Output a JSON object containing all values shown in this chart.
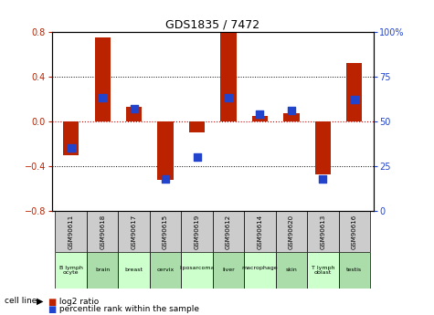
{
  "title": "GDS1835 / 7472",
  "samples": [
    "GSM90611",
    "GSM90618",
    "GSM90617",
    "GSM90615",
    "GSM90619",
    "GSM90612",
    "GSM90614",
    "GSM90620",
    "GSM90613",
    "GSM90616"
  ],
  "cell_lines": [
    "B lymph\nocyte",
    "brain",
    "breast",
    "cervix",
    "liposarcoma\n",
    "liver",
    "macrophage\n",
    "skin",
    "T lymph\noblast",
    "testis"
  ],
  "cell_line_colors": [
    "#ccffcc",
    "#aaddaa",
    "#ccffcc",
    "#aaddaa",
    "#ccffcc",
    "#aaddaa",
    "#ccffcc",
    "#aaddaa",
    "#ccffcc",
    "#aaddaa"
  ],
  "log2_ratio": [
    -0.3,
    0.75,
    0.13,
    -0.52,
    -0.1,
    0.79,
    0.05,
    0.07,
    -0.47,
    0.52
  ],
  "percentile_rank": [
    35,
    63,
    57,
    18,
    30,
    63,
    54,
    56,
    18,
    62
  ],
  "ylim": [
    -0.8,
    0.8
  ],
  "right_ylim": [
    0,
    100
  ],
  "right_yticks": [
    0,
    25,
    50,
    75,
    100
  ],
  "right_yticklabels": [
    "0",
    "25",
    "50",
    "75",
    "100%"
  ],
  "left_yticks": [
    -0.8,
    -0.4,
    0,
    0.4,
    0.8
  ],
  "bar_color": "#bb2200",
  "dot_color": "#2244cc",
  "bg_color": "#ffffff",
  "plot_bg": "#ffffff",
  "zero_line_color": "#cc0000",
  "bar_width": 0.5,
  "dot_size": 40
}
